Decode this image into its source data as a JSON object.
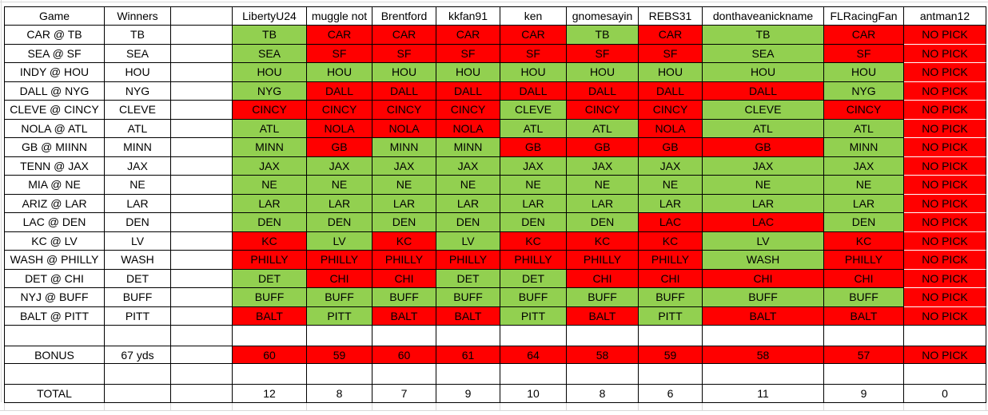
{
  "sheet": {
    "colors": {
      "correct": "#92D050",
      "incorrect": "#FF0000"
    },
    "columns": {
      "game": "Game",
      "winners": "Winners",
      "spacer": ""
    },
    "players": [
      "LibertyU24",
      "muggle not",
      "Brentford",
      "kkfan91",
      "ken",
      "gnomesayin",
      "REBS31",
      "donthaveanickname",
      "FLRacingFan",
      "antman12"
    ],
    "games": [
      {
        "game": "CAR @ TB",
        "winner": "TB",
        "picks": [
          "TB",
          "CAR",
          "CAR",
          "CAR",
          "CAR",
          "TB",
          "CAR",
          "TB",
          "CAR",
          "NO PICK"
        ],
        "results": [
          "W",
          "L",
          "L",
          "L",
          "L",
          "W",
          "L",
          "W",
          "L",
          "L"
        ]
      },
      {
        "game": "SEA @ SF",
        "winner": "SEA",
        "picks": [
          "SEA",
          "SF",
          "SF",
          "SF",
          "SF",
          "SF",
          "SF",
          "SEA",
          "SF",
          "NO PICK"
        ],
        "results": [
          "W",
          "L",
          "L",
          "L",
          "L",
          "L",
          "L",
          "W",
          "L",
          "L"
        ]
      },
      {
        "game": "INDY @ HOU",
        "winner": "HOU",
        "picks": [
          "HOU",
          "HOU",
          "HOU",
          "HOU",
          "HOU",
          "HOU",
          "HOU",
          "HOU",
          "HOU",
          "NO PICK"
        ],
        "results": [
          "W",
          "W",
          "W",
          "W",
          "W",
          "W",
          "W",
          "W",
          "W",
          "L"
        ]
      },
      {
        "game": "DALL @ NYG",
        "winner": "NYG",
        "picks": [
          "NYG",
          "DALL",
          "DALL",
          "DALL",
          "DALL",
          "DALL",
          "DALL",
          "DALL",
          "NYG",
          "NO PICK"
        ],
        "results": [
          "W",
          "L",
          "L",
          "L",
          "L",
          "L",
          "L",
          "L",
          "W",
          "L"
        ]
      },
      {
        "game": "CLEVE @ CINCY",
        "winner": "CLEVE",
        "picks": [
          "CINCY",
          "CINCY",
          "CINCY",
          "CINCY",
          "CLEVE",
          "CINCY",
          "CINCY",
          "CLEVE",
          "CINCY",
          "NO PICK"
        ],
        "results": [
          "L",
          "L",
          "L",
          "L",
          "W",
          "L",
          "L",
          "W",
          "L",
          "L"
        ]
      },
      {
        "game": "NOLA @ ATL",
        "winner": "ATL",
        "picks": [
          "ATL",
          "NOLA",
          "NOLA",
          "NOLA",
          "ATL",
          "ATL",
          "NOLA",
          "ATL",
          "ATL",
          "NO PICK"
        ],
        "results": [
          "W",
          "L",
          "L",
          "L",
          "W",
          "W",
          "L",
          "W",
          "W",
          "L"
        ]
      },
      {
        "game": "GB @ MIINN",
        "winner": "MINN",
        "picks": [
          "MINN",
          "GB",
          "MINN",
          "MINN",
          "GB",
          "GB",
          "GB",
          "GB",
          "MINN",
          "NO PICK"
        ],
        "results": [
          "W",
          "L",
          "W",
          "W",
          "L",
          "L",
          "L",
          "L",
          "W",
          "L"
        ]
      },
      {
        "game": "TENN @ JAX",
        "winner": "JAX",
        "picks": [
          "JAX",
          "JAX",
          "JAX",
          "JAX",
          "JAX",
          "JAX",
          "JAX",
          "JAX",
          "JAX",
          "NO PICK"
        ],
        "results": [
          "W",
          "W",
          "W",
          "W",
          "W",
          "W",
          "W",
          "W",
          "W",
          "L"
        ]
      },
      {
        "game": "MIA @ NE",
        "winner": "NE",
        "picks": [
          "NE",
          "NE",
          "NE",
          "NE",
          "NE",
          "NE",
          "NE",
          "NE",
          "NE",
          "NO PICK"
        ],
        "results": [
          "W",
          "W",
          "W",
          "W",
          "W",
          "W",
          "W",
          "W",
          "W",
          "L"
        ]
      },
      {
        "game": "ARIZ @ LAR",
        "winner": "LAR",
        "picks": [
          "LAR",
          "LAR",
          "LAR",
          "LAR",
          "LAR",
          "LAR",
          "LAR",
          "LAR",
          "LAR",
          "NO PICK"
        ],
        "results": [
          "W",
          "W",
          "W",
          "W",
          "W",
          "W",
          "W",
          "W",
          "W",
          "L"
        ]
      },
      {
        "game": "LAC @ DEN",
        "winner": "DEN",
        "picks": [
          "DEN",
          "DEN",
          "DEN",
          "DEN",
          "DEN",
          "DEN",
          "LAC",
          "LAC",
          "DEN",
          "NO PICK"
        ],
        "results": [
          "W",
          "W",
          "W",
          "W",
          "W",
          "W",
          "L",
          "L",
          "W",
          "L"
        ]
      },
      {
        "game": "KC @ LV",
        "winner": "LV",
        "picks": [
          "KC",
          "LV",
          "KC",
          "LV",
          "KC",
          "KC",
          "KC",
          "LV",
          "KC",
          "NO PICK"
        ],
        "results": [
          "L",
          "W",
          "L",
          "W",
          "L",
          "L",
          "L",
          "W",
          "L",
          "L"
        ]
      },
      {
        "game": "WASH @ PHILLY",
        "winner": "WASH",
        "picks": [
          "PHILLY",
          "PHILLY",
          "PHILLY",
          "PHILLY",
          "PHILLY",
          "PHILLY",
          "PHILLY",
          "WASH",
          "PHILLY",
          "NO PICK"
        ],
        "results": [
          "L",
          "L",
          "L",
          "L",
          "L",
          "L",
          "L",
          "W",
          "L",
          "L"
        ]
      },
      {
        "game": "DET @ CHI",
        "winner": "DET",
        "picks": [
          "DET",
          "CHI",
          "CHI",
          "DET",
          "DET",
          "CHI",
          "CHI",
          "CHI",
          "CHI",
          "NO PICK"
        ],
        "results": [
          "W",
          "L",
          "L",
          "W",
          "W",
          "L",
          "L",
          "L",
          "L",
          "L"
        ]
      },
      {
        "game": "NYJ @ BUFF",
        "winner": "BUFF",
        "picks": [
          "BUFF",
          "BUFF",
          "BUFF",
          "BUFF",
          "BUFF",
          "BUFF",
          "BUFF",
          "BUFF",
          "BUFF",
          "NO PICK"
        ],
        "results": [
          "W",
          "W",
          "W",
          "W",
          "W",
          "W",
          "W",
          "W",
          "W",
          "L"
        ]
      },
      {
        "game": "BALT @ PITT",
        "winner": "PITT",
        "picks": [
          "BALT",
          "PITT",
          "BALT",
          "BALT",
          "PITT",
          "BALT",
          "PITT",
          "BALT",
          "BALT",
          "NO PICK"
        ],
        "results": [
          "L",
          "W",
          "L",
          "L",
          "W",
          "L",
          "W",
          "L",
          "L",
          "L"
        ]
      }
    ],
    "bonus": {
      "label": "BONUS",
      "winner": "67 yds",
      "values": [
        "60",
        "59",
        "60",
        "61",
        "64",
        "58",
        "59",
        "58",
        "57",
        "NO PICK"
      ]
    },
    "total": {
      "label": "TOTAL",
      "values": [
        "12",
        "8",
        "7",
        "9",
        "10",
        "8",
        "6",
        "11",
        "9",
        "0"
      ]
    }
  }
}
